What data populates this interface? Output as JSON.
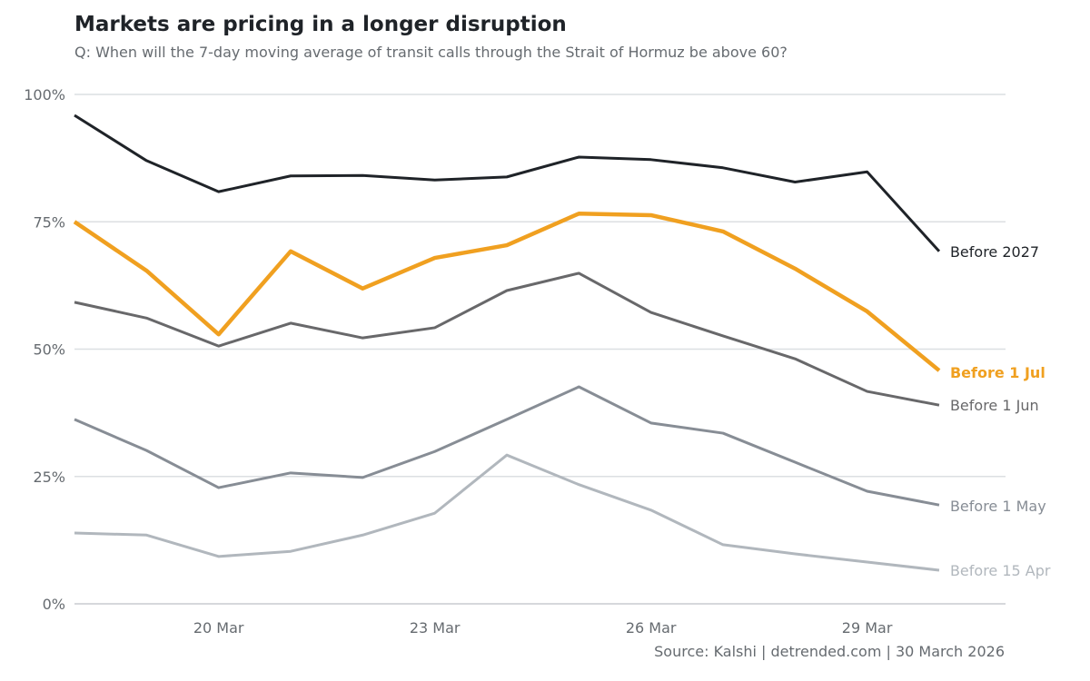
{
  "chart_data": {
    "type": "line",
    "title": "Markets are pricing in a longer disruption",
    "subtitle": "Q: When will the 7-day moving average of transit calls through the Strait of Hormuz be above 60?",
    "source": "Source: Kalshi | detrended.com | 30 March 2026",
    "x": [
      "18 Mar",
      "19 Mar",
      "20 Mar",
      "21 Mar",
      "22 Mar",
      "23 Mar",
      "24 Mar",
      "25 Mar",
      "26 Mar",
      "27 Mar",
      "28 Mar",
      "29 Mar",
      "30 Mar"
    ],
    "x_ticks": [
      "20 Mar",
      "23 Mar",
      "26 Mar",
      "29 Mar"
    ],
    "y_ticks": [
      {
        "value": 0,
        "label": "0%"
      },
      {
        "value": 25,
        "label": "25%"
      },
      {
        "value": 50,
        "label": "50%"
      },
      {
        "value": 75,
        "label": "75%"
      },
      {
        "value": 100,
        "label": "100%"
      }
    ],
    "ylim": [
      0,
      100
    ],
    "grid": "horizontal",
    "legend": "direct labels at line ends",
    "series": [
      {
        "name": "Before 2027",
        "color": "#1f2328",
        "values": [
          95.9,
          87.0,
          80.9,
          84.0,
          84.1,
          83.2,
          83.8,
          87.7,
          87.2,
          85.6,
          82.8,
          84.8,
          69.2
        ]
      },
      {
        "name": "Before 1 Jul",
        "color": "#f0a020",
        "bold": true,
        "values": [
          75.0,
          65.4,
          52.9,
          69.2,
          61.9,
          67.9,
          70.4,
          76.6,
          76.3,
          73.1,
          65.8,
          57.4,
          45.8
        ]
      },
      {
        "name": "Before 1 Jun",
        "color": "#68686a",
        "values": [
          59.2,
          56.1,
          50.6,
          55.1,
          52.2,
          54.2,
          61.5,
          64.9,
          57.2,
          52.6,
          48.1,
          41.7,
          39.0
        ]
      },
      {
        "name": "Before 1 May",
        "color": "#878d95",
        "values": [
          36.2,
          30.1,
          22.8,
          25.7,
          24.8,
          29.9,
          36.2,
          42.6,
          35.5,
          33.5,
          27.8,
          22.1,
          19.4
        ]
      },
      {
        "name": "Before 15 Apr",
        "color": "#b1b7bd",
        "values": [
          13.9,
          13.5,
          9.3,
          10.3,
          13.5,
          17.8,
          29.2,
          23.4,
          18.4,
          11.6,
          9.8,
          8.2,
          6.6
        ]
      }
    ]
  }
}
